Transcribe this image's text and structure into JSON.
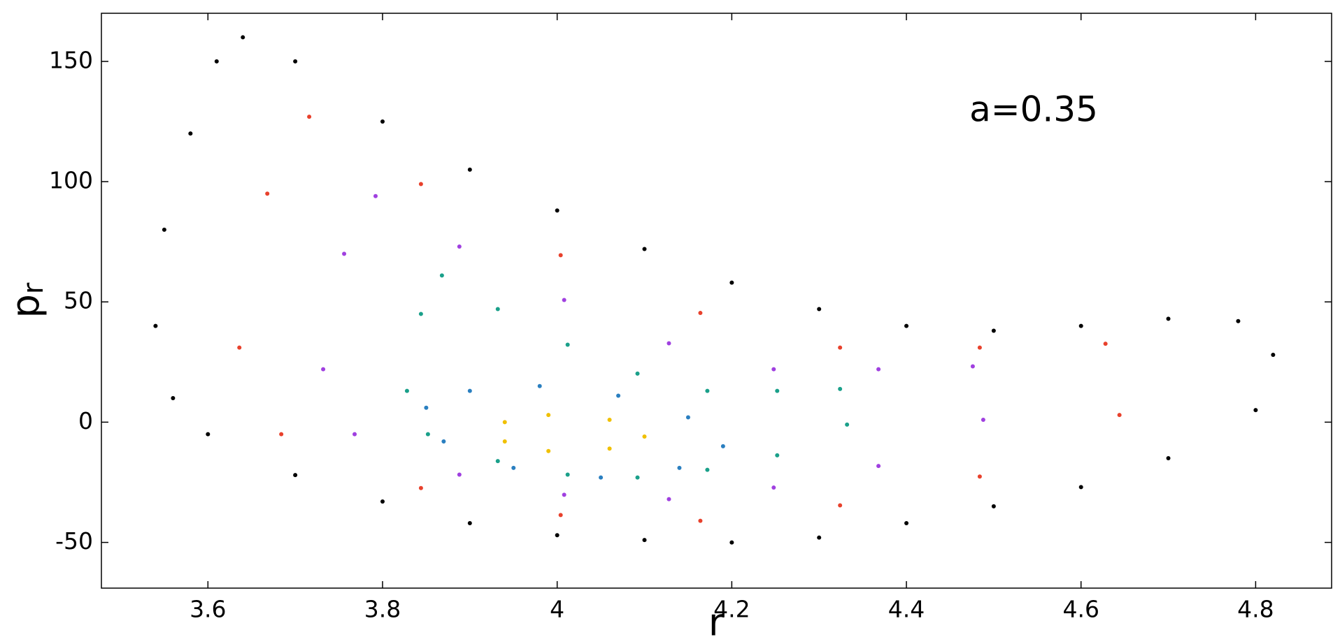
{
  "chart_data": {
    "type": "scatter",
    "annotation": "a=0.35",
    "xlabel": "r",
    "ylabel": {
      "base": "p",
      "subscript": "r"
    },
    "xlim": [
      3.478,
      4.887
    ],
    "ylim": [
      -69,
      170
    ],
    "xticks": [
      3.6,
      3.8,
      4,
      4.2,
      4.4,
      4.6,
      4.8
    ],
    "yticks": [
      -50,
      0,
      50,
      100,
      150
    ],
    "grid": false,
    "series": [
      {
        "color": "#000000",
        "x": [
          3.64,
          3.7,
          3.8,
          3.9,
          4.0,
          4.1,
          4.2,
          4.3,
          4.4,
          4.5,
          4.6,
          4.7,
          4.78,
          4.82,
          4.8,
          4.7,
          4.6,
          4.5,
          4.4,
          4.3,
          4.2,
          4.1,
          4.0,
          3.9,
          3.8,
          3.7,
          3.6,
          3.56,
          3.54,
          3.55,
          3.58,
          3.61
        ],
        "values": [
          160,
          150,
          125,
          105,
          88,
          72,
          58,
          47,
          40,
          38,
          40,
          43,
          42,
          28,
          5,
          -15,
          -27,
          -35,
          -42,
          -48,
          -50,
          -49,
          -47,
          -42,
          -33,
          -22,
          -5,
          10,
          40,
          80,
          120,
          150
        ]
      },
      {
        "color": "#e8412c",
        "x": [
          3.716,
          3.844,
          4.004,
          4.164,
          4.324,
          4.484,
          4.628,
          4.644,
          4.484,
          4.324,
          4.164,
          4.004,
          3.844,
          3.684,
          3.636,
          3.668
        ],
        "values": [
          127,
          99,
          69.4,
          45.4,
          31,
          31,
          32.6,
          3,
          -22.6,
          -34.6,
          -41,
          -38.6,
          -27.4,
          -5,
          31,
          95
        ]
      },
      {
        "color": "#a040e0",
        "x": [
          3.792,
          3.888,
          4.008,
          4.128,
          4.248,
          4.368,
          4.476,
          4.488,
          4.368,
          4.248,
          4.128,
          4.008,
          3.888,
          3.768,
          3.732,
          3.756
        ],
        "values": [
          94,
          73,
          50.8,
          32.8,
          22,
          22,
          23.2,
          1,
          -18.2,
          -27.2,
          -32,
          -30.2,
          -21.8,
          -5,
          22,
          70
        ]
      },
      {
        "color": "#1aa08a",
        "x": [
          3.868,
          3.932,
          4.012,
          4.092,
          4.172,
          4.252,
          4.324,
          4.332,
          4.252,
          4.172,
          4.092,
          4.012,
          3.932,
          3.852,
          3.828,
          3.844
        ],
        "values": [
          61,
          47,
          32.2,
          20.2,
          13,
          13,
          13.8,
          -1,
          -13.8,
          -19.8,
          -23,
          -21.8,
          -16.2,
          -5,
          13,
          45
        ]
      },
      {
        "color": "#2a7fc0",
        "x": [
          3.85,
          3.9,
          3.98,
          4.07,
          4.15,
          4.19,
          4.14,
          4.05,
          3.95,
          3.87
        ],
        "values": [
          6,
          13,
          15,
          11,
          2,
          -10,
          -19,
          -23,
          -19,
          -8
        ]
      },
      {
        "color": "#f0c000",
        "x": [
          3.94,
          3.99,
          4.06,
          4.1,
          4.06,
          3.99,
          3.94
        ],
        "values": [
          0,
          3,
          1,
          -6,
          -11,
          -12,
          -8
        ]
      }
    ]
  }
}
